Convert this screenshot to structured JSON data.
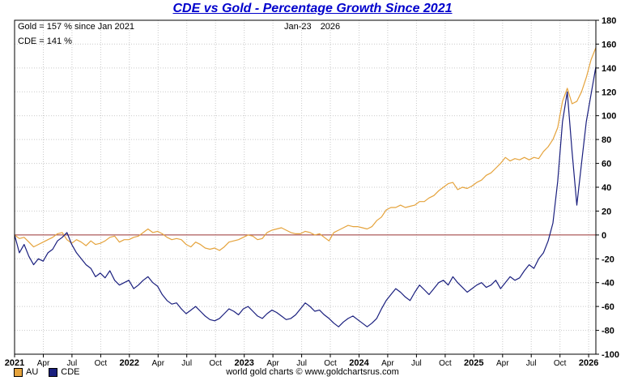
{
  "page": {
    "title": "CDE vs Gold - Percentage Growth Since 2021",
    "footer": "world gold charts © www.goldchartsrus.com"
  },
  "annotations": {
    "gold_label": "Gold = 157 % since Jan 2021",
    "cde_label": "CDE = 141 %",
    "date_label": "Jan-23 2026"
  },
  "legend": [
    {
      "label": "AU",
      "color": "#E5A33C"
    },
    {
      "label": "CDE",
      "color": "#1A1F7E"
    }
  ],
  "colors": {
    "title": "#0000CC",
    "zero_line": "#993333",
    "grid": "#C9C9C9",
    "gold_series": "#E5A33C",
    "cde_series": "#1A1F7E",
    "axis": "#000000"
  },
  "chart_data": {
    "type": "line",
    "title": "CDE vs Gold - Percentage Growth Since 2021",
    "xlabel": "",
    "ylabel": "",
    "ylim": [
      -100,
      180
    ],
    "y_tick_step": 20,
    "xlim": [
      0,
      60.75
    ],
    "x_unit": "months since Jan 2021",
    "grid": true,
    "legend_position": "bottom-left",
    "x_ticks": [
      {
        "m": 0,
        "label": "2021",
        "bold": true
      },
      {
        "m": 3,
        "label": "Apr",
        "bold": false
      },
      {
        "m": 6,
        "label": "Jul",
        "bold": false
      },
      {
        "m": 9,
        "label": "Oct",
        "bold": false
      },
      {
        "m": 12,
        "label": "2022",
        "bold": true
      },
      {
        "m": 15,
        "label": "Apr",
        "bold": false
      },
      {
        "m": 18,
        "label": "Jul",
        "bold": false
      },
      {
        "m": 21,
        "label": "Oct",
        "bold": false
      },
      {
        "m": 24,
        "label": "2023",
        "bold": true
      },
      {
        "m": 27,
        "label": "Apr",
        "bold": false
      },
      {
        "m": 30,
        "label": "Jul",
        "bold": false
      },
      {
        "m": 33,
        "label": "Oct",
        "bold": false
      },
      {
        "m": 36,
        "label": "2024",
        "bold": true
      },
      {
        "m": 39,
        "label": "Apr",
        "bold": false
      },
      {
        "m": 42,
        "label": "Jul",
        "bold": false
      },
      {
        "m": 45,
        "label": "Oct",
        "bold": false
      },
      {
        "m": 48,
        "label": "2025",
        "bold": true
      },
      {
        "m": 51,
        "label": "Apr",
        "bold": false
      },
      {
        "m": 54,
        "label": "Jul",
        "bold": false
      },
      {
        "m": 57,
        "label": "Oct",
        "bold": false
      },
      {
        "m": 60,
        "label": "2026",
        "bold": true
      }
    ],
    "series": [
      {
        "name": "AU",
        "color": "#E5A33C",
        "final_value_pct": 157,
        "values": [
          0,
          -3,
          -2,
          -6,
          -10,
          -8,
          -6,
          -4,
          -2,
          1,
          2,
          -4,
          -7,
          -4,
          -6,
          -9,
          -5,
          -8,
          -7,
          -5,
          -2,
          -1,
          -6,
          -4,
          -4,
          -2,
          -1,
          2,
          5,
          2,
          3,
          1,
          -2,
          -4,
          -3,
          -4,
          -8,
          -10,
          -6,
          -8,
          -11,
          -12,
          -11,
          -13,
          -10,
          -6,
          -5,
          -4,
          -2,
          0,
          -1,
          -4,
          -3,
          2,
          4,
          5,
          6,
          4,
          2,
          1,
          1,
          3,
          2,
          0,
          1,
          -2,
          -5,
          2,
          4,
          6,
          8,
          7,
          7,
          6,
          5,
          7,
          12,
          15,
          21,
          23,
          23,
          25,
          23,
          24,
          25,
          28,
          28,
          31,
          33,
          37,
          40,
          43,
          44,
          38,
          40,
          39,
          41,
          44,
          46,
          50,
          52,
          56,
          60,
          65,
          62,
          64,
          63,
          65,
          63,
          65,
          64,
          70,
          74,
          80,
          90,
          112,
          123,
          110,
          112,
          120,
          132,
          147,
          157
        ]
      },
      {
        "name": "CDE",
        "color": "#1A1F7E",
        "final_value_pct": 141,
        "values": [
          0,
          -15,
          -8,
          -18,
          -25,
          -20,
          -22,
          -15,
          -12,
          -5,
          -2,
          2,
          -8,
          -15,
          -20,
          -25,
          -28,
          -35,
          -32,
          -36,
          -30,
          -38,
          -42,
          -40,
          -38,
          -45,
          -42,
          -38,
          -35,
          -40,
          -43,
          -50,
          -55,
          -58,
          -57,
          -62,
          -66,
          -63,
          -60,
          -64,
          -68,
          -71,
          -72,
          -70,
          -66,
          -62,
          -64,
          -67,
          -62,
          -60,
          -64,
          -68,
          -70,
          -66,
          -63,
          -65,
          -68,
          -71,
          -70,
          -67,
          -62,
          -57,
          -60,
          -64,
          -63,
          -67,
          -70,
          -74,
          -77,
          -73,
          -70,
          -68,
          -71,
          -74,
          -77,
          -74,
          -70,
          -62,
          -55,
          -50,
          -45,
          -48,
          -52,
          -55,
          -48,
          -42,
          -46,
          -50,
          -45,
          -40,
          -38,
          -42,
          -35,
          -40,
          -44,
          -48,
          -45,
          -42,
          -40,
          -44,
          -42,
          -38,
          -45,
          -40,
          -35,
          -38,
          -36,
          -30,
          -25,
          -28,
          -20,
          -15,
          -5,
          10,
          45,
          95,
          120,
          70,
          25,
          60,
          95,
          118,
          141
        ]
      }
    ]
  }
}
